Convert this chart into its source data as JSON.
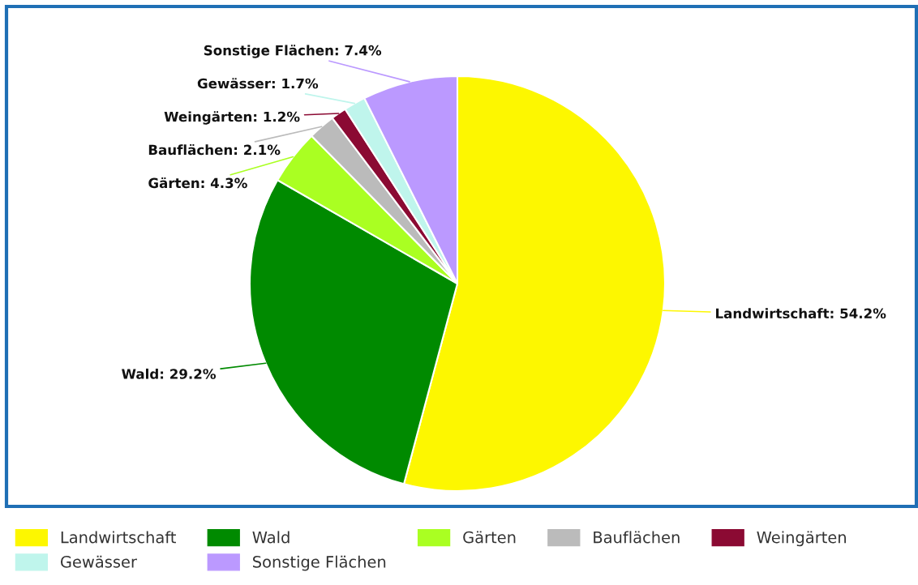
{
  "chart_data": {
    "type": "pie",
    "categories": [
      "Landwirtschaft",
      "Wald",
      "Gärten",
      "Bauflächen",
      "Weingärten",
      "Gewässer",
      "Sonstige Flächen"
    ],
    "values": [
      54.2,
      29.2,
      4.3,
      2.1,
      1.2,
      1.7,
      7.4
    ],
    "colors": [
      "#fdf700",
      "#008a00",
      "#aaff22",
      "#bbbbbb",
      "#8b0a33",
      "#bff5ec",
      "#bb99ff"
    ],
    "value_labels": [
      "Landwirtschaft: 54.2%",
      "Wald: 29.2%",
      "Gärten: 4.3%",
      "Bauflächen: 2.1%",
      "Weingärten: 1.2%",
      "Gewässer: 1.7%",
      "Sonstige Flächen: 7.4%"
    ],
    "legend": "bottom"
  }
}
